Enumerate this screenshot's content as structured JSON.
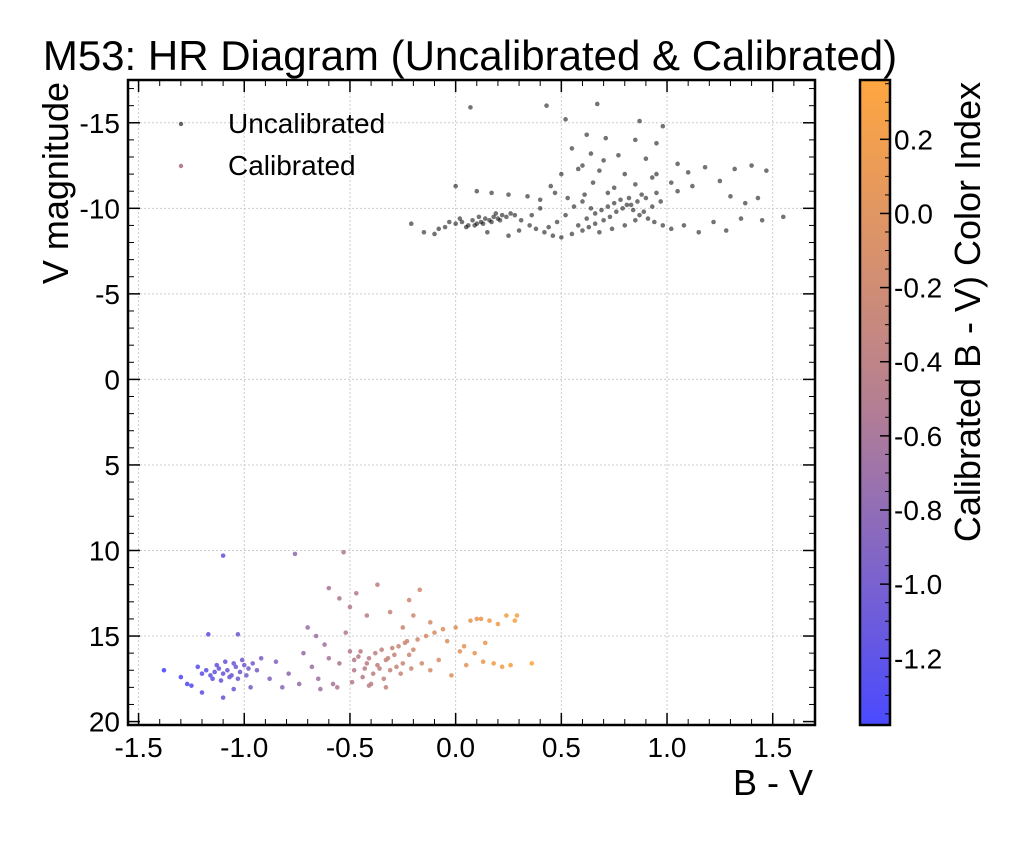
{
  "chart_data": {
    "type": "scatter",
    "title": "M53: HR Diagram (Uncalibrated & Calibrated)",
    "xlabel": "B - V",
    "ylabel": "V magnitude",
    "xlim": [
      -1.55,
      1.7
    ],
    "ylim": [
      20.2,
      -17.5
    ],
    "y_inverted": true,
    "x_ticks": [
      -1.5,
      -1.0,
      -0.5,
      0.0,
      0.5,
      1.0,
      1.5
    ],
    "x_tick_labels": [
      "-1.5",
      "-1.0",
      "-0.5",
      "0.0",
      "0.5",
      "1.0",
      "1.5"
    ],
    "y_ticks": [
      -15,
      -10,
      -5,
      0,
      5,
      10,
      15,
      20
    ],
    "y_tick_labels": [
      "-15",
      "-10",
      "-5",
      "0",
      "5",
      "10",
      "15",
      "20"
    ],
    "grid": true,
    "legend_position": "top-left",
    "colorbar": {
      "label": "Calibrated B - V) Color Index",
      "range": [
        -1.38,
        0.36
      ],
      "ticks": [
        0.2,
        0.0,
        -0.2,
        -0.4,
        -0.6,
        -0.8,
        -1.0,
        -1.2
      ],
      "tick_labels": [
        "0.2",
        "0.0",
        "-0.2",
        "-0.4",
        "-0.6",
        "-0.8",
        "-1.0",
        "-1.2"
      ],
      "color_low": "#4a4aff",
      "color_mid": "#b57f92",
      "color_high": "#ffa640"
    },
    "series": [
      {
        "name": "Uncalibrated",
        "color": "#000000",
        "points": [
          [
            0.07,
            -15.9
          ],
          [
            0.43,
            -16.0
          ],
          [
            0.67,
            -16.1
          ],
          [
            0.52,
            -15.2
          ],
          [
            0.87,
            -15.1
          ],
          [
            0.98,
            -14.8
          ],
          [
            0.62,
            -14.3
          ],
          [
            0.71,
            -14.1
          ],
          [
            0.85,
            -14.0
          ],
          [
            0.95,
            -13.8
          ],
          [
            0.55,
            -13.5
          ],
          [
            0.64,
            -13.2
          ],
          [
            0.77,
            -13.1
          ],
          [
            0.9,
            -12.9
          ],
          [
            1.05,
            -12.6
          ],
          [
            1.18,
            -12.4
          ],
          [
            1.32,
            -12.3
          ],
          [
            1.4,
            -12.5
          ],
          [
            1.47,
            -12.2
          ],
          [
            0.5,
            -12.0
          ],
          [
            0.58,
            -12.3
          ],
          [
            0.68,
            -12.2
          ],
          [
            0.8,
            -12.0
          ],
          [
            0.93,
            -11.8
          ],
          [
            1.02,
            -11.5
          ],
          [
            1.12,
            -11.3
          ],
          [
            1.25,
            -11.6
          ],
          [
            0.0,
            -11.3
          ],
          [
            0.1,
            -11.0
          ],
          [
            0.17,
            -10.9
          ],
          [
            0.25,
            -10.8
          ],
          [
            0.34,
            -10.7
          ],
          [
            0.4,
            -10.5
          ],
          [
            0.47,
            -10.9
          ],
          [
            0.53,
            -10.6
          ],
          [
            0.61,
            -10.8
          ],
          [
            0.72,
            -10.9
          ],
          [
            0.82,
            -10.6
          ],
          [
            0.88,
            -10.8
          ],
          [
            0.95,
            -10.9
          ],
          [
            1.05,
            -11.0
          ],
          [
            1.3,
            -10.7
          ],
          [
            1.43,
            -10.6
          ],
          [
            1.37,
            -10.3
          ],
          [
            -0.21,
            -9.1
          ],
          [
            -0.1,
            -8.5
          ],
          [
            -0.05,
            -8.9
          ],
          [
            0.0,
            -9.1
          ],
          [
            0.03,
            -9.2
          ],
          [
            0.06,
            -9.0
          ],
          [
            0.08,
            -9.3
          ],
          [
            0.1,
            -9.1
          ],
          [
            0.12,
            -9.2
          ],
          [
            0.14,
            -9.4
          ],
          [
            0.16,
            -9.3
          ],
          [
            0.18,
            -9.5
          ],
          [
            0.2,
            -9.4
          ],
          [
            0.22,
            -9.6
          ],
          [
            0.24,
            -9.5
          ],
          [
            0.26,
            -9.7
          ],
          [
            0.28,
            -9.6
          ],
          [
            0.05,
            -8.9
          ],
          [
            0.09,
            -9.0
          ],
          [
            0.13,
            -9.1
          ],
          [
            0.17,
            -9.2
          ],
          [
            0.21,
            -9.3
          ],
          [
            0.11,
            -9.5
          ],
          [
            0.19,
            -9.7
          ],
          [
            0.02,
            -9.4
          ],
          [
            -0.03,
            -9.2
          ],
          [
            0.31,
            -9.3
          ],
          [
            0.35,
            -9.0
          ],
          [
            0.38,
            -8.8
          ],
          [
            0.42,
            -8.6
          ],
          [
            0.46,
            -8.4
          ],
          [
            0.5,
            -8.3
          ],
          [
            0.55,
            -8.5
          ],
          [
            0.6,
            -8.7
          ],
          [
            0.63,
            -8.9
          ],
          [
            0.66,
            -9.1
          ],
          [
            0.7,
            -9.3
          ],
          [
            0.73,
            -9.5
          ],
          [
            0.76,
            -9.8
          ],
          [
            0.79,
            -10.0
          ],
          [
            0.83,
            -10.2
          ],
          [
            0.86,
            -10.4
          ],
          [
            0.9,
            -10.6
          ],
          [
            0.58,
            -9.0
          ],
          [
            0.62,
            -9.4
          ],
          [
            0.66,
            -9.7
          ],
          [
            0.69,
            -9.9
          ],
          [
            0.72,
            -10.1
          ],
          [
            0.75,
            -10.3
          ],
          [
            0.78,
            -10.5
          ],
          [
            0.81,
            -10.2
          ],
          [
            0.84,
            -9.9
          ],
          [
            0.87,
            -9.6
          ],
          [
            0.91,
            -9.4
          ],
          [
            0.94,
            -9.2
          ],
          [
            0.98,
            -9.0
          ],
          [
            1.02,
            -8.8
          ],
          [
            0.52,
            -9.6
          ],
          [
            0.48,
            -9.2
          ],
          [
            0.44,
            -8.9
          ],
          [
            0.56,
            -10.1
          ],
          [
            0.6,
            -10.4
          ],
          [
            0.64,
            -10.0
          ],
          [
            0.68,
            -8.6
          ],
          [
            0.74,
            -8.8
          ],
          [
            0.8,
            -9.0
          ],
          [
            0.85,
            -9.3
          ],
          [
            0.89,
            -9.8
          ],
          [
            0.93,
            -10.1
          ],
          [
            0.97,
            -10.4
          ],
          [
            1.08,
            -9.0
          ],
          [
            1.15,
            -8.6
          ],
          [
            1.22,
            -9.2
          ],
          [
            1.28,
            -8.7
          ],
          [
            1.35,
            -9.4
          ],
          [
            1.45,
            -9.3
          ],
          [
            1.55,
            -9.5
          ],
          [
            0.3,
            -8.7
          ],
          [
            0.36,
            -9.6
          ],
          [
            0.4,
            -10.0
          ],
          [
            0.25,
            -8.4
          ],
          [
            0.15,
            -8.6
          ],
          [
            -0.08,
            -8.8
          ],
          [
            -0.15,
            -8.6
          ],
          [
            0.45,
            -11.3
          ],
          [
            0.65,
            -11.5
          ],
          [
            0.75,
            -11.2
          ],
          [
            0.85,
            -11.4
          ],
          [
            0.7,
            -12.8
          ],
          [
            0.6,
            -12.5
          ],
          [
            0.95,
            -12.0
          ],
          [
            1.1,
            -12.1
          ]
        ]
      },
      {
        "name": "Calibrated",
        "color": "#b57f92",
        "points": [
          [
            -1.38,
            17.0
          ],
          [
            -1.3,
            17.4
          ],
          [
            -1.27,
            17.8
          ],
          [
            -1.22,
            16.8
          ],
          [
            -1.2,
            17.2
          ],
          [
            -1.18,
            17.0
          ],
          [
            -1.16,
            17.3
          ],
          [
            -1.14,
            17.1
          ],
          [
            -1.12,
            16.9
          ],
          [
            -1.1,
            17.2
          ],
          [
            -1.08,
            17.0
          ],
          [
            -1.06,
            17.3
          ],
          [
            -1.04,
            16.8
          ],
          [
            -1.02,
            17.1
          ],
          [
            -1.0,
            16.7
          ],
          [
            -0.98,
            16.9
          ],
          [
            -0.96,
            16.6
          ],
          [
            -0.94,
            17.0
          ],
          [
            -1.15,
            17.5
          ],
          [
            -1.11,
            17.6
          ],
          [
            -1.07,
            17.4
          ],
          [
            -1.03,
            17.5
          ],
          [
            -0.99,
            17.3
          ],
          [
            -1.13,
            16.7
          ],
          [
            -1.09,
            16.5
          ],
          [
            -1.05,
            16.6
          ],
          [
            -1.01,
            16.4
          ],
          [
            -1.2,
            18.3
          ],
          [
            -1.25,
            17.9
          ],
          [
            -1.1,
            18.6
          ],
          [
            -1.05,
            18.1
          ],
          [
            -0.97,
            18.0
          ],
          [
            -1.17,
            14.9
          ],
          [
            -1.03,
            14.9
          ],
          [
            -1.1,
            10.3
          ],
          [
            -0.92,
            16.3
          ],
          [
            -0.88,
            17.5
          ],
          [
            -0.85,
            16.5
          ],
          [
            -0.82,
            18.0
          ],
          [
            -0.79,
            17.2
          ],
          [
            -0.76,
            10.2
          ],
          [
            -0.72,
            16.0
          ],
          [
            -0.68,
            16.8
          ],
          [
            -0.65,
            17.5
          ],
          [
            -0.62,
            15.5
          ],
          [
            -0.6,
            16.3
          ],
          [
            -0.58,
            17.8
          ],
          [
            -0.55,
            16.6
          ],
          [
            -0.53,
            10.1
          ],
          [
            -0.52,
            14.8
          ],
          [
            -0.5,
            15.9
          ],
          [
            -0.48,
            17.0
          ],
          [
            -0.46,
            16.2
          ],
          [
            -0.44,
            17.4
          ],
          [
            -0.42,
            16.6
          ],
          [
            -0.4,
            17.8
          ],
          [
            -0.38,
            16.0
          ],
          [
            -0.36,
            16.9
          ],
          [
            -0.34,
            17.5
          ],
          [
            -0.32,
            16.3
          ],
          [
            -0.3,
            15.7
          ],
          [
            -0.28,
            16.8
          ],
          [
            -0.26,
            17.2
          ],
          [
            -0.24,
            15.4
          ],
          [
            -0.22,
            16.1
          ],
          [
            -0.2,
            15.8
          ],
          [
            -0.18,
            15.2
          ],
          [
            -0.16,
            16.6
          ],
          [
            -0.14,
            15.0
          ],
          [
            -0.12,
            17.0
          ],
          [
            -0.1,
            14.8
          ],
          [
            -0.08,
            16.4
          ],
          [
            -0.06,
            14.6
          ],
          [
            -0.04,
            15.3
          ],
          [
            -0.02,
            17.3
          ],
          [
            0.0,
            14.5
          ],
          [
            0.02,
            15.9
          ],
          [
            0.05,
            16.7
          ],
          [
            0.07,
            14.1
          ],
          [
            0.1,
            14.0
          ],
          [
            0.12,
            14.0
          ],
          [
            0.14,
            15.4
          ],
          [
            0.16,
            14.1
          ],
          [
            0.18,
            16.6
          ],
          [
            0.2,
            14.3
          ],
          [
            0.22,
            16.8
          ],
          [
            0.24,
            13.8
          ],
          [
            0.26,
            16.7
          ],
          [
            0.28,
            14.1
          ],
          [
            0.36,
            16.6
          ],
          [
            -0.6,
            12.2
          ],
          [
            -0.55,
            12.8
          ],
          [
            -0.5,
            13.3
          ],
          [
            -0.47,
            12.5
          ],
          [
            -0.42,
            13.8
          ],
          [
            -0.37,
            12.0
          ],
          [
            -0.31,
            13.6
          ],
          [
            -0.25,
            14.5
          ],
          [
            -0.22,
            12.9
          ],
          [
            -0.2,
            13.8
          ],
          [
            -0.17,
            12.3
          ],
          [
            -0.12,
            14.2
          ],
          [
            -0.48,
            16.4
          ],
          [
            -0.45,
            15.9
          ],
          [
            -0.43,
            16.9
          ],
          [
            -0.41,
            16.3
          ],
          [
            -0.39,
            17.2
          ],
          [
            -0.37,
            16.7
          ],
          [
            -0.35,
            15.8
          ],
          [
            -0.33,
            16.4
          ],
          [
            -0.31,
            17.0
          ],
          [
            -0.29,
            16.1
          ],
          [
            -0.27,
            15.6
          ],
          [
            -0.25,
            16.6
          ],
          [
            -0.23,
            15.3
          ],
          [
            -0.21,
            16.9
          ],
          [
            -0.66,
            15.0
          ],
          [
            -0.7,
            14.5
          ],
          [
            -0.74,
            17.8
          ],
          [
            -0.64,
            18.1
          ],
          [
            -0.56,
            18.0
          ],
          [
            -0.49,
            17.7
          ],
          [
            -0.41,
            17.9
          ],
          [
            -0.33,
            18.0
          ],
          [
            0.04,
            15.6
          ],
          [
            0.09,
            16.0
          ],
          [
            0.13,
            16.5
          ],
          [
            0.29,
            13.8
          ]
        ]
      }
    ]
  }
}
